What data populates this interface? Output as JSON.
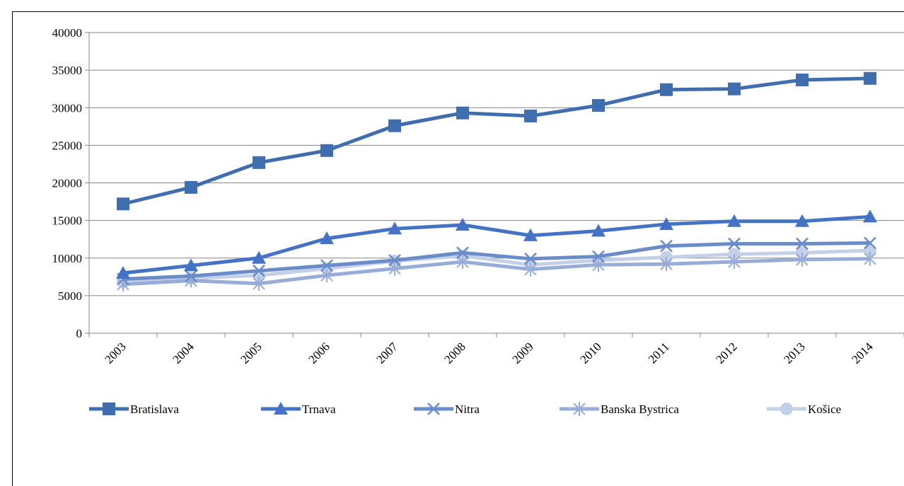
{
  "chart_data": {
    "type": "line",
    "title": "",
    "xlabel": "",
    "ylabel": "",
    "x": [
      "2003",
      "2004",
      "2005",
      "2006",
      "2007",
      "2008",
      "2009",
      "2010",
      "2011",
      "2012",
      "2013",
      "2014"
    ],
    "ylim": [
      0,
      40000
    ],
    "yticks": [
      0,
      5000,
      10000,
      15000,
      20000,
      25000,
      30000,
      35000,
      40000
    ],
    "grid": true,
    "legend_position": "bottom",
    "series": [
      {
        "name": "Bratislava",
        "marker": "square",
        "color": "#3F6DAE",
        "values": [
          17200,
          19400,
          22700,
          24300,
          27600,
          29300,
          28900,
          30300,
          32400,
          32500,
          33700,
          33900
        ]
      },
      {
        "name": "Trnava",
        "marker": "triangle",
        "color": "#4472C4",
        "values": [
          8000,
          9000,
          10000,
          12600,
          13900,
          14400,
          13000,
          13600,
          14500,
          14900,
          14900,
          15500
        ]
      },
      {
        "name": "Nitra",
        "marker": "x",
        "color": "#6A8CC8",
        "values": [
          7200,
          7600,
          8300,
          9000,
          9700,
          10700,
          9900,
          10200,
          11600,
          11900,
          11900,
          12000
        ]
      },
      {
        "name": "Banska Bystrica",
        "marker": "star",
        "color": "#97ACD6",
        "values": [
          6500,
          7000,
          6600,
          7700,
          8600,
          9500,
          8500,
          9100,
          9200,
          9500,
          9800,
          9900
        ]
      },
      {
        "name": "Košice",
        "marker": "circle",
        "color": "#C3D0E8",
        "values": [
          6800,
          7300,
          7700,
          8600,
          9600,
          10300,
          9100,
          9700,
          10100,
          10500,
          10700,
          11000
        ]
      }
    ]
  }
}
